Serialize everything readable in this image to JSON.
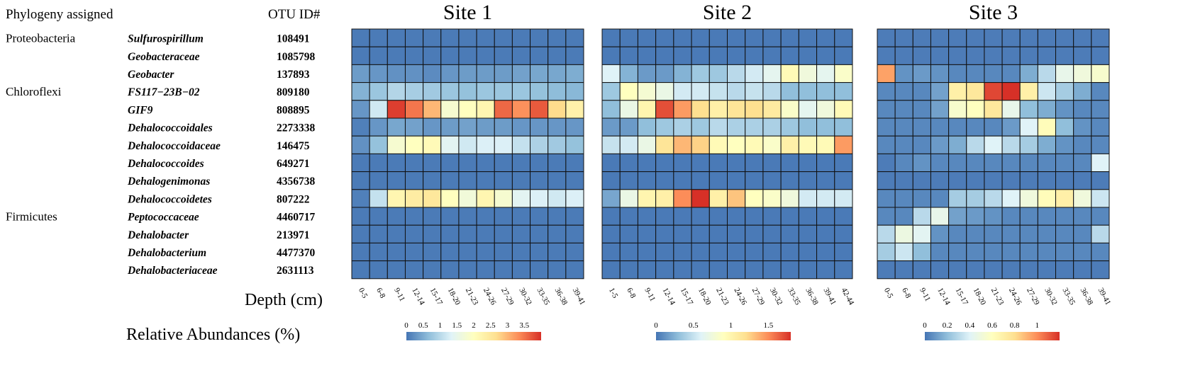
{
  "header": {
    "phylogeny": "Phylogeny assigned",
    "otu_id": "OTU ID#"
  },
  "groups": [
    "Proteobacteria",
    "Chloroflexi",
    "Firmicutes"
  ],
  "rows": [
    {
      "phylum": "Proteobacteria",
      "taxon": "Sulfurospirillum",
      "otu": "108491"
    },
    {
      "phylum": "",
      "taxon": "Geobacteraceae",
      "otu": "1085798"
    },
    {
      "phylum": "",
      "taxon": "Geobacter",
      "otu": "137893"
    },
    {
      "phylum": "Chloroflexi",
      "taxon": "FS117−23B−02",
      "otu": "809180"
    },
    {
      "phylum": "",
      "taxon": "GIF9",
      "otu": "808895"
    },
    {
      "phylum": "",
      "taxon": "Dehalococcoidales",
      "otu": "2273338"
    },
    {
      "phylum": "",
      "taxon": "Dehalococcoidaceae",
      "otu": "146475"
    },
    {
      "phylum": "",
      "taxon": "Dehalococcoides",
      "otu": "649271"
    },
    {
      "phylum": "",
      "taxon": "Dehalogenimonas",
      "otu": "4356738"
    },
    {
      "phylum": "",
      "taxon": "Dehalococcoidetes",
      "otu": "807222"
    },
    {
      "phylum": "Firmicutes",
      "taxon": "Peptococcaceae",
      "otu": "4460717"
    },
    {
      "phylum": "",
      "taxon": "Dehalobacter",
      "otu": "213971"
    },
    {
      "phylum": "",
      "taxon": "Dehalobacterium",
      "otu": "4477370"
    },
    {
      "phylum": "",
      "taxon": "Dehalobacteriaceae",
      "otu": "2631113"
    }
  ],
  "depth_label": "Depth (cm)",
  "legend_label": "Relative Abundances (%)",
  "colors": {
    "scale": [
      "#4575b4",
      "#91bfdb",
      "#e0f3f8",
      "#ffffbf",
      "#fee090",
      "#fc8d59",
      "#d73027"
    ],
    "cell_border": "#111111"
  },
  "chart_data": [
    {
      "type": "heatmap",
      "title": "Site 1",
      "x": [
        "0-5",
        "6-8",
        "9-11",
        "12-14",
        "15-17",
        "18-20",
        "21-23",
        "24-26",
        "27-29",
        "30-32",
        "33-35",
        "36-38",
        "39-41"
      ],
      "xlabel": "Depth (cm)",
      "legend_ticks": [
        "0",
        "0.5",
        "1",
        "1.5",
        "2",
        "2.5",
        "3",
        "3.5"
      ],
      "vmin": 0,
      "vmax": 4.0,
      "values": [
        [
          0.05,
          0.05,
          0.05,
          0.05,
          0.05,
          0.05,
          0.05,
          0.05,
          0.05,
          0.05,
          0.05,
          0.05,
          0.05
        ],
        [
          0.05,
          0.05,
          0.05,
          0.05,
          0.05,
          0.05,
          0.05,
          0.05,
          0.05,
          0.05,
          0.05,
          0.05,
          0.05
        ],
        [
          0.35,
          0.3,
          0.25,
          0.25,
          0.2,
          0.3,
          0.35,
          0.35,
          0.35,
          0.4,
          0.45,
          0.45,
          0.5
        ],
        [
          0.55,
          0.75,
          0.95,
          0.85,
          0.8,
          0.75,
          0.7,
          0.75,
          0.75,
          0.75,
          0.7,
          0.65,
          0.6
        ],
        [
          0.3,
          1.2,
          3.9,
          3.5,
          3.0,
          1.8,
          2.0,
          2.2,
          3.6,
          3.3,
          3.7,
          2.7,
          2.3
        ],
        [
          0.1,
          0.3,
          0.45,
          0.4,
          0.3,
          0.35,
          0.4,
          0.35,
          0.35,
          0.3,
          0.3,
          0.3,
          0.3
        ],
        [
          0.25,
          0.7,
          1.8,
          2.0,
          2.1,
          1.4,
          1.2,
          1.3,
          1.3,
          1.1,
          0.9,
          0.8,
          0.7
        ],
        [
          0.05,
          0.05,
          0.05,
          0.05,
          0.05,
          0.05,
          0.05,
          0.05,
          0.05,
          0.05,
          0.05,
          0.05,
          0.05
        ],
        [
          0.05,
          0.05,
          0.05,
          0.05,
          0.05,
          0.05,
          0.05,
          0.05,
          0.05,
          0.05,
          0.05,
          0.05,
          0.05
        ],
        [
          0.1,
          1.1,
          2.2,
          2.4,
          2.5,
          2.0,
          1.7,
          2.2,
          1.8,
          1.4,
          1.3,
          1.2,
          1.3
        ],
        [
          0.05,
          0.05,
          0.05,
          0.05,
          0.05,
          0.05,
          0.05,
          0.05,
          0.05,
          0.05,
          0.05,
          0.05,
          0.05
        ],
        [
          0.05,
          0.05,
          0.05,
          0.05,
          0.05,
          0.05,
          0.05,
          0.05,
          0.05,
          0.05,
          0.05,
          0.05,
          0.05
        ],
        [
          0.05,
          0.05,
          0.05,
          0.05,
          0.05,
          0.05,
          0.05,
          0.05,
          0.05,
          0.05,
          0.05,
          0.05,
          0.05
        ],
        [
          0.05,
          0.05,
          0.05,
          0.05,
          0.05,
          0.05,
          0.05,
          0.05,
          0.05,
          0.05,
          0.05,
          0.05,
          0.05
        ]
      ]
    },
    {
      "type": "heatmap",
      "title": "Site 2",
      "x": [
        "1-5",
        "6-8",
        "9-11",
        "12-14",
        "15-17",
        "18-20",
        "21-23",
        "24-26",
        "27-29",
        "30-32",
        "33-35",
        "36-38",
        "39-41",
        "42-44"
      ],
      "xlabel": "Depth (cm)",
      "legend_ticks": [
        "0",
        "0.5",
        "1",
        "1.5"
      ],
      "vmin": 0,
      "vmax": 1.8,
      "values": [
        [
          0.02,
          0.02,
          0.02,
          0.02,
          0.02,
          0.02,
          0.02,
          0.02,
          0.02,
          0.02,
          0.02,
          0.02,
          0.02,
          0.02
        ],
        [
          0.02,
          0.02,
          0.02,
          0.02,
          0.02,
          0.02,
          0.02,
          0.02,
          0.02,
          0.02,
          0.02,
          0.02,
          0.02,
          0.02
        ],
        [
          0.6,
          0.25,
          0.15,
          0.15,
          0.25,
          0.35,
          0.35,
          0.45,
          0.55,
          0.65,
          0.95,
          0.75,
          0.65,
          0.85
        ],
        [
          0.35,
          0.9,
          0.8,
          0.7,
          0.55,
          0.55,
          0.5,
          0.45,
          0.5,
          0.45,
          0.3,
          0.3,
          0.3,
          0.3
        ],
        [
          0.3,
          0.7,
          1.0,
          1.7,
          1.45,
          1.2,
          1.05,
          1.15,
          1.2,
          1.1,
          0.85,
          0.65,
          0.75,
          0.95
        ],
        [
          0.15,
          0.15,
          0.3,
          0.35,
          0.4,
          0.35,
          0.45,
          0.4,
          0.4,
          0.4,
          0.35,
          0.3,
          0.3,
          0.3
        ],
        [
          0.5,
          0.55,
          0.7,
          1.15,
          1.35,
          1.25,
          0.95,
          0.9,
          0.95,
          0.85,
          1.05,
          0.95,
          0.95,
          1.45
        ],
        [
          0.02,
          0.02,
          0.02,
          0.02,
          0.02,
          0.02,
          0.02,
          0.02,
          0.02,
          0.02,
          0.02,
          0.02,
          0.02,
          0.02
        ],
        [
          0.02,
          0.02,
          0.02,
          0.02,
          0.02,
          0.02,
          0.02,
          0.02,
          0.02,
          0.02,
          0.02,
          0.02,
          0.02,
          0.02
        ],
        [
          0.2,
          0.7,
          1.0,
          1.05,
          1.5,
          1.8,
          1.05,
          1.3,
          0.9,
          0.85,
          0.75,
          0.55,
          0.55,
          0.55
        ],
        [
          0.02,
          0.02,
          0.02,
          0.02,
          0.02,
          0.02,
          0.02,
          0.02,
          0.02,
          0.02,
          0.02,
          0.02,
          0.02,
          0.02
        ],
        [
          0.02,
          0.02,
          0.02,
          0.02,
          0.02,
          0.02,
          0.02,
          0.02,
          0.02,
          0.02,
          0.02,
          0.02,
          0.02,
          0.02
        ],
        [
          0.02,
          0.02,
          0.02,
          0.02,
          0.02,
          0.02,
          0.02,
          0.02,
          0.02,
          0.02,
          0.02,
          0.02,
          0.02,
          0.02
        ],
        [
          0.02,
          0.02,
          0.02,
          0.02,
          0.02,
          0.02,
          0.02,
          0.02,
          0.02,
          0.02,
          0.02,
          0.02,
          0.02,
          0.02
        ]
      ]
    },
    {
      "type": "heatmap",
      "title": "Site 3",
      "x": [
        "0-5",
        "6-8",
        "9-11",
        "12-14",
        "15-17",
        "18-20",
        "21-23",
        "24-26",
        "27-29",
        "30-32",
        "33-35",
        "36-38",
        "39-41"
      ],
      "xlabel": "Depth (cm)",
      "legend_ticks": [
        "0",
        "0.2",
        "0.4",
        "0.6",
        "0.8",
        "1"
      ],
      "vmin": 0,
      "vmax": 1.2,
      "values": [
        [
          0.02,
          0.02,
          0.02,
          0.02,
          0.02,
          0.02,
          0.02,
          0.02,
          0.02,
          0.02,
          0.02,
          0.02,
          0.02
        ],
        [
          0.02,
          0.02,
          0.02,
          0.02,
          0.02,
          0.02,
          0.02,
          0.02,
          0.02,
          0.02,
          0.02,
          0.02,
          0.02
        ],
        [
          0.95,
          0.08,
          0.1,
          0.08,
          0.05,
          0.05,
          0.05,
          0.05,
          0.15,
          0.3,
          0.45,
          0.5,
          0.55
        ],
        [
          0.05,
          0.05,
          0.05,
          0.12,
          0.7,
          0.75,
          1.15,
          1.2,
          0.7,
          0.35,
          0.25,
          0.15,
          0.05
        ],
        [
          0.05,
          0.05,
          0.05,
          0.12,
          0.55,
          0.6,
          0.75,
          0.45,
          0.2,
          0.15,
          0.08,
          0.05,
          0.05
        ],
        [
          0.05,
          0.05,
          0.05,
          0.05,
          0.05,
          0.05,
          0.05,
          0.1,
          0.4,
          0.62,
          0.2,
          0.08,
          0.05
        ],
        [
          0.05,
          0.05,
          0.05,
          0.1,
          0.15,
          0.3,
          0.4,
          0.3,
          0.25,
          0.15,
          0.08,
          0.05,
          0.05
        ],
        [
          0.02,
          0.05,
          0.08,
          0.05,
          0.05,
          0.05,
          0.05,
          0.05,
          0.05,
          0.05,
          0.05,
          0.05,
          0.4
        ],
        [
          0.02,
          0.02,
          0.02,
          0.02,
          0.02,
          0.02,
          0.02,
          0.02,
          0.02,
          0.02,
          0.02,
          0.02,
          0.02
        ],
        [
          0.05,
          0.05,
          0.05,
          0.05,
          0.25,
          0.25,
          0.3,
          0.4,
          0.5,
          0.62,
          0.7,
          0.5,
          0.35
        ],
        [
          0.05,
          0.05,
          0.3,
          0.45,
          0.12,
          0.1,
          0.08,
          0.05,
          0.05,
          0.05,
          0.05,
          0.05,
          0.05
        ],
        [
          0.3,
          0.48,
          0.42,
          0.08,
          0.05,
          0.05,
          0.05,
          0.05,
          0.05,
          0.05,
          0.05,
          0.05,
          0.3
        ],
        [
          0.25,
          0.35,
          0.2,
          0.05,
          0.05,
          0.05,
          0.05,
          0.05,
          0.05,
          0.05,
          0.05,
          0.05,
          0.05
        ],
        [
          0.02,
          0.02,
          0.02,
          0.02,
          0.02,
          0.02,
          0.02,
          0.02,
          0.02,
          0.02,
          0.02,
          0.02,
          0.02
        ]
      ]
    }
  ]
}
